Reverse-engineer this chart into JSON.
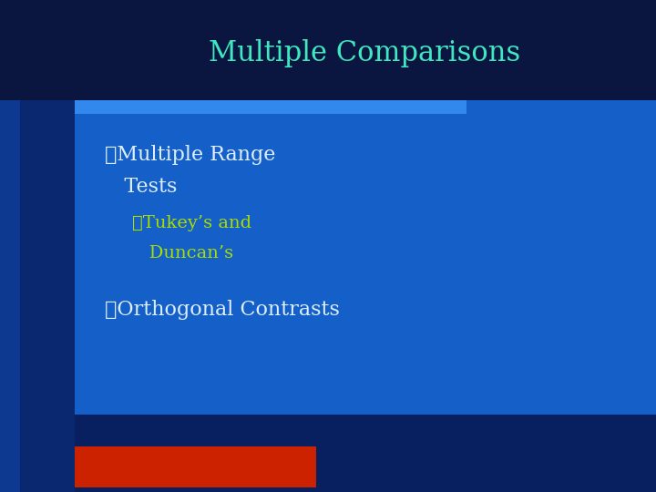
{
  "title": "Multiple Comparisons",
  "title_color": "#40E8C0",
  "title_fontsize": 22,
  "bg_color": "#1460C8",
  "header_bar_color": "#0A1540",
  "accent_bar_color": "#3388EE",
  "left_sidebar_color": "#0D3A90",
  "left_sidebar2_color": "#0A2870",
  "bullet1_line1": "❖Multiple Range",
  "bullet1_line2": "   Tests",
  "bullet1_color": "#DDEEFF",
  "bullet1_fontsize": 16,
  "sub_bullet_line1": "➤Tukey’s and",
  "sub_bullet_line2": "   Duncan’s",
  "sub_bullet_color": "#AADD00",
  "sub_bullet_fontsize": 14,
  "bullet2_text": "❖Orthogonal Contrasts",
  "bullet2_color": "#DDEEFF",
  "bullet2_fontsize": 16,
  "red_box_color": "#CC2200",
  "bottom_bar_color": "#082060"
}
